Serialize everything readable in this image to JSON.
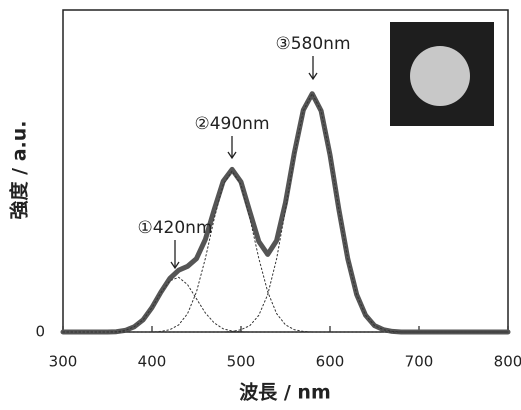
{
  "chart_data": {
    "type": "line",
    "x_label": "波長 / nm",
    "y_label": "強度 / a.u.",
    "annotations": [
      "①420nm",
      "②490nm",
      "③580nm"
    ],
    "x": [
      300,
      340,
      350,
      360,
      370,
      380,
      390,
      400,
      410,
      420,
      430,
      440,
      450,
      460,
      470,
      480,
      490,
      500,
      510,
      520,
      530,
      540,
      550,
      560,
      570,
      580,
      590,
      600,
      610,
      620,
      630,
      640,
      650,
      660,
      670,
      680,
      690,
      700,
      800
    ],
    "series": [
      {
        "color": "#555555",
        "values": [
          0,
          0,
          0,
          0.001,
          0.005,
          0.016,
          0.038,
          0.076,
          0.124,
          0.166,
          0.192,
          0.204,
          0.228,
          0.288,
          0.381,
          0.468,
          0.505,
          0.466,
          0.373,
          0.281,
          0.241,
          0.284,
          0.402,
          0.557,
          0.689,
          0.74,
          0.687,
          0.55,
          0.38,
          0.227,
          0.116,
          0.052,
          0.02,
          0.007,
          0.002,
          0,
          0,
          0,
          0
        ]
      },
      {
        "color": "#333333",
        "values": [
          0,
          0,
          0,
          0.001,
          0.005,
          0.016,
          0.038,
          0.076,
          0.122,
          0.159,
          0.17,
          0.147,
          0.103,
          0.059,
          0.028,
          0.01,
          0.003,
          0.001,
          0,
          0,
          0,
          0,
          0,
          0,
          0,
          0,
          0,
          0,
          0,
          0,
          0,
          0,
          0,
          0,
          0,
          0,
          0,
          0,
          0
        ]
      },
      {
        "color": "#333333",
        "values": [
          0,
          0,
          0,
          0,
          0,
          0,
          0,
          0,
          0.002,
          0.007,
          0.022,
          0.057,
          0.125,
          0.229,
          0.353,
          0.458,
          0.5,
          0.458,
          0.353,
          0.229,
          0.125,
          0.057,
          0.022,
          0.007,
          0.002,
          0,
          0,
          0,
          0,
          0,
          0,
          0,
          0,
          0,
          0,
          0,
          0,
          0,
          0
        ]
      },
      {
        "color": "#333333",
        "values": [
          0,
          0,
          0,
          0,
          0,
          0,
          0,
          0,
          0,
          0,
          0,
          0,
          0,
          0,
          0,
          0,
          0.002,
          0.007,
          0.02,
          0.052,
          0.116,
          0.227,
          0.38,
          0.55,
          0.687,
          0.74,
          0.687,
          0.55,
          0.38,
          0.227,
          0.116,
          0.052,
          0.02,
          0.007,
          0.002,
          0,
          0,
          0,
          0
        ]
      }
    ],
    "xlim": [
      300,
      800
    ],
    "xticks": [
      300,
      400,
      500,
      600,
      700,
      800
    ],
    "ylim": [
      0,
      1
    ],
    "yticks": [
      0
    ]
  }
}
